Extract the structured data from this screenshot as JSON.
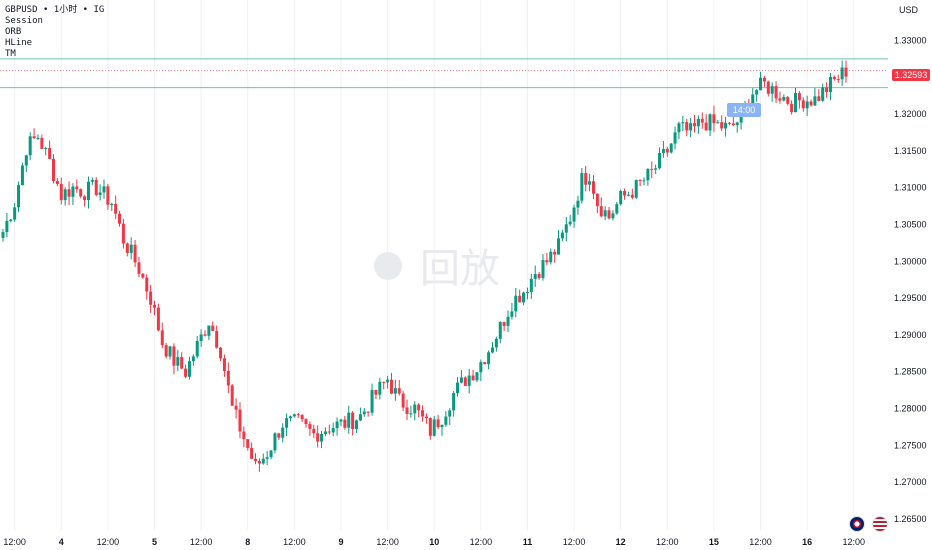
{
  "header": {
    "symbol": "GBPUSD",
    "separator": "•",
    "interval": "1小时",
    "source": "IG",
    "indicators": [
      "Session",
      "ORB",
      "HLine",
      "TM"
    ]
  },
  "axis": {
    "currency": "USD"
  },
  "watermark": "回放",
  "price_tag": "1.32593",
  "time_tag": "14:00",
  "colors": {
    "up": "#089981",
    "down": "#f23645",
    "session_line": "#6cc4b4",
    "tag_bg": "#f23645"
  },
  "flags": [
    {
      "name": "uk-flag-icon"
    },
    {
      "name": "us-flag-icon"
    }
  ],
  "chart_data": {
    "type": "candlestick",
    "title": "",
    "xlabel": "",
    "ylabel": "",
    "ylim": [
      1.2635,
      1.3355
    ],
    "y_ticks": [
      "1.26500",
      "1.27000",
      "1.27500",
      "1.28000",
      "1.28500",
      "1.29000",
      "1.29500",
      "1.30000",
      "1.30500",
      "1.31000",
      "1.31500",
      "1.32000",
      "1.32500",
      "1.33000"
    ],
    "x_ticks": [
      {
        "label": "12:00",
        "bold": false,
        "bar": 3
      },
      {
        "label": "4",
        "bold": true,
        "bar": 15
      },
      {
        "label": "12:00",
        "bold": false,
        "bar": 27
      },
      {
        "label": "5",
        "bold": true,
        "bar": 39
      },
      {
        "label": "12:00",
        "bold": false,
        "bar": 51
      },
      {
        "label": "8",
        "bold": true,
        "bar": 63
      },
      {
        "label": "12:00",
        "bold": false,
        "bar": 75
      },
      {
        "label": "9",
        "bold": true,
        "bar": 87
      },
      {
        "label": "12:00",
        "bold": false,
        "bar": 99
      },
      {
        "label": "10",
        "bold": true,
        "bar": 111
      },
      {
        "label": "12:00",
        "bold": false,
        "bar": 123
      },
      {
        "label": "11",
        "bold": true,
        "bar": 135
      },
      {
        "label": "12:00",
        "bold": false,
        "bar": 147
      },
      {
        "label": "12",
        "bold": true,
        "bar": 159
      },
      {
        "label": "12:00",
        "bold": false,
        "bar": 171
      },
      {
        "label": "15",
        "bold": true,
        "bar": 183
      },
      {
        "label": "12:00",
        "bold": false,
        "bar": 195
      },
      {
        "label": "16",
        "bold": true,
        "bar": 207
      },
      {
        "label": "12:00",
        "bold": false,
        "bar": 219
      }
    ],
    "session_lines": [
      1.3275,
      1.3236
    ],
    "last_price": 1.32593,
    "anchors": [
      [
        0,
        1.304
      ],
      [
        3,
        1.308
      ],
      [
        6,
        1.3155
      ],
      [
        9,
        1.317
      ],
      [
        12,
        1.3135
      ],
      [
        15,
        1.309
      ],
      [
        18,
        1.31
      ],
      [
        21,
        1.3095
      ],
      [
        24,
        1.31
      ],
      [
        28,
        1.308
      ],
      [
        31,
        1.303
      ],
      [
        35,
        1.299
      ],
      [
        38,
        1.295
      ],
      [
        41,
        1.289
      ],
      [
        44,
        1.2865
      ],
      [
        47,
        1.285
      ],
      [
        50,
        1.2885
      ],
      [
        53,
        1.292
      ],
      [
        56,
        1.288
      ],
      [
        59,
        1.28
      ],
      [
        62,
        1.276
      ],
      [
        65,
        1.272
      ],
      [
        68,
        1.274
      ],
      [
        72,
        1.278
      ],
      [
        76,
        1.278
      ],
      [
        80,
        1.2765
      ],
      [
        84,
        1.2775
      ],
      [
        88,
        1.278
      ],
      [
        92,
        1.279
      ],
      [
        96,
        1.282
      ],
      [
        99,
        1.284
      ],
      [
        102,
        1.281
      ],
      [
        106,
        1.28
      ],
      [
        110,
        1.277
      ],
      [
        113,
        1.279
      ],
      [
        116,
        1.282
      ],
      [
        119,
        1.284
      ],
      [
        122,
        1.2855
      ],
      [
        125,
        1.288
      ],
      [
        128,
        1.291
      ],
      [
        131,
        1.2945
      ],
      [
        134,
        1.296
      ],
      [
        137,
        1.2985
      ],
      [
        140,
        1.3
      ],
      [
        143,
        1.302
      ],
      [
        146,
        1.306
      ],
      [
        149,
        1.311
      ],
      [
        151,
        1.312
      ],
      [
        153,
        1.308
      ],
      [
        156,
        1.306
      ],
      [
        159,
        1.3085
      ],
      [
        163,
        1.31
      ],
      [
        167,
        1.312
      ],
      [
        171,
        1.315
      ],
      [
        174,
        1.318
      ],
      [
        177,
        1.3175
      ],
      [
        180,
        1.319
      ],
      [
        184,
        1.3185
      ],
      [
        187,
        1.318
      ],
      [
        190,
        1.3195
      ],
      [
        193,
        1.323
      ],
      [
        196,
        1.324
      ],
      [
        199,
        1.323
      ],
      [
        203,
        1.3215
      ],
      [
        206,
        1.322
      ],
      [
        209,
        1.322
      ],
      [
        212,
        1.3235
      ],
      [
        215,
        1.325
      ],
      [
        217,
        1.32593
      ]
    ]
  }
}
